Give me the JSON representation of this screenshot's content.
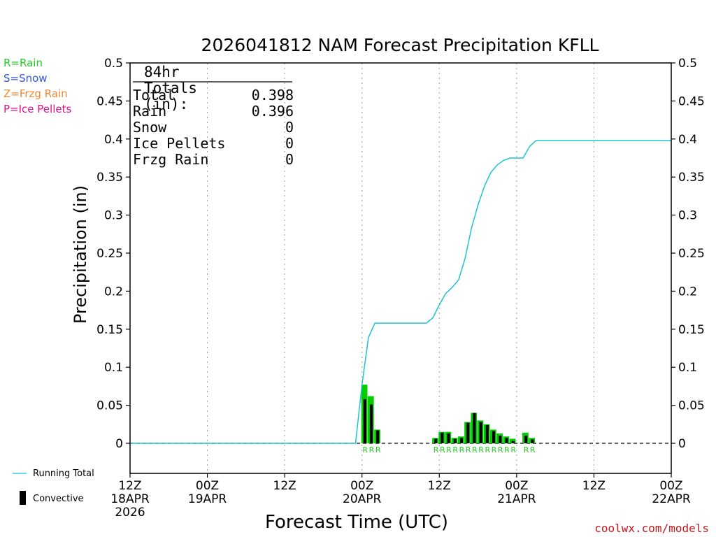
{
  "chart_data": {
    "type": "bar",
    "title": "2026041812 NAM Forecast Precipitation KFLL",
    "xlabel": "Forecast Time (UTC)",
    "ylabel": "Precipitation (in)",
    "ylim": [
      -0.04,
      0.5
    ],
    "yticks": [
      "0",
      "0.05",
      "0.1",
      "0.15",
      "0.2",
      "0.25",
      "0.3",
      "0.35",
      "0.4",
      "0.45",
      "0.5"
    ],
    "xlim_hours": [
      0,
      84
    ],
    "xticks": [
      {
        "hour": 0,
        "line1": "12Z",
        "line2": "18APR",
        "line3": "2026"
      },
      {
        "hour": 12,
        "line1": "00Z",
        "line2": "19APR",
        "line3": ""
      },
      {
        "hour": 24,
        "line1": "12Z",
        "line2": "",
        "line3": ""
      },
      {
        "hour": 36,
        "line1": "00Z",
        "line2": "20APR",
        "line3": ""
      },
      {
        "hour": 48,
        "line1": "12Z",
        "line2": "",
        "line3": ""
      },
      {
        "hour": 60,
        "line1": "00Z",
        "line2": "21APR",
        "line3": ""
      },
      {
        "hour": 72,
        "line1": "12Z",
        "line2": "",
        "line3": ""
      },
      {
        "hour": 84,
        "line1": "00Z",
        "line2": "22APR",
        "line3": ""
      }
    ],
    "precip_type_legend": [
      {
        "label": "R=Rain",
        "color": "#22cc22"
      },
      {
        "label": "S=Snow",
        "color": "#3355dd"
      },
      {
        "label": "Z=Frzg Rain",
        "color": "#ee8833"
      },
      {
        "label": "P=Ice Pellets",
        "color": "#dd1188"
      }
    ],
    "series": [
      {
        "name": "Rain (hourly total)",
        "color": "#00cc00",
        "x": [
          36,
          37,
          38,
          47,
          48,
          49,
          50,
          51,
          52,
          53,
          54,
          55,
          56,
          57,
          58,
          59,
          61,
          62
        ],
        "values": [
          0.077,
          0.062,
          0.018,
          0.007,
          0.015,
          0.015,
          0.007,
          0.009,
          0.028,
          0.04,
          0.03,
          0.025,
          0.018,
          0.013,
          0.009,
          0.006,
          0.014,
          0.007
        ]
      },
      {
        "name": "Convective",
        "color": "#000000",
        "x": [
          36,
          37,
          38,
          47,
          48,
          49,
          50,
          51,
          52,
          53,
          54,
          55,
          56,
          57,
          58,
          59,
          61,
          62
        ],
        "values": [
          0.058,
          0.051,
          0.017,
          0.006,
          0.014,
          0.013,
          0.006,
          0.007,
          0.027,
          0.04,
          0.028,
          0.024,
          0.016,
          0.01,
          0.007,
          0.003,
          0.01,
          0.005
        ]
      },
      {
        "name": "Running Total",
        "color": "#19c5d0",
        "x": [
          0,
          35,
          36,
          37,
          38,
          46,
          47,
          48,
          49,
          50,
          51,
          52,
          53,
          54,
          55,
          56,
          57,
          58,
          59,
          60,
          61,
          62,
          63,
          84
        ],
        "values": [
          0,
          0,
          0.077,
          0.139,
          0.158,
          0.158,
          0.165,
          0.182,
          0.197,
          0.205,
          0.215,
          0.243,
          0.283,
          0.313,
          0.338,
          0.356,
          0.366,
          0.372,
          0.375,
          0.375,
          0.375,
          0.39,
          0.398,
          0.398
        ]
      }
    ],
    "type_markers": [
      {
        "hour": 36,
        "text": "R"
      },
      {
        "hour": 37,
        "text": "R"
      },
      {
        "hour": 38,
        "text": "R"
      },
      {
        "hour": 47,
        "text": "R"
      },
      {
        "hour": 48,
        "text": "R"
      },
      {
        "hour": 49,
        "text": "R"
      },
      {
        "hour": 50,
        "text": "R"
      },
      {
        "hour": 51,
        "text": "R"
      },
      {
        "hour": 52,
        "text": "R"
      },
      {
        "hour": 53,
        "text": "R"
      },
      {
        "hour": 54,
        "text": "R"
      },
      {
        "hour": 55,
        "text": "R"
      },
      {
        "hour": 56,
        "text": "R"
      },
      {
        "hour": 57,
        "text": "R"
      },
      {
        "hour": 58,
        "text": "R"
      },
      {
        "hour": 59,
        "text": "R"
      },
      {
        "hour": 61,
        "text": "R"
      },
      {
        "hour": 62,
        "text": "R"
      }
    ],
    "totals": {
      "heading": "84hr Totals (in):",
      "rows": [
        {
          "label": "Total",
          "value": "0.398"
        },
        {
          "label": "Rain",
          "value": "0.396"
        },
        {
          "label": "Snow",
          "value": "0"
        },
        {
          "label": "Ice Pellets",
          "value": "0"
        },
        {
          "label": "Frzg Rain",
          "value": "0"
        }
      ]
    },
    "bottom_legend": {
      "running_total": "Running Total",
      "convective": "Convective"
    },
    "credit": "coolwx.com/models"
  }
}
